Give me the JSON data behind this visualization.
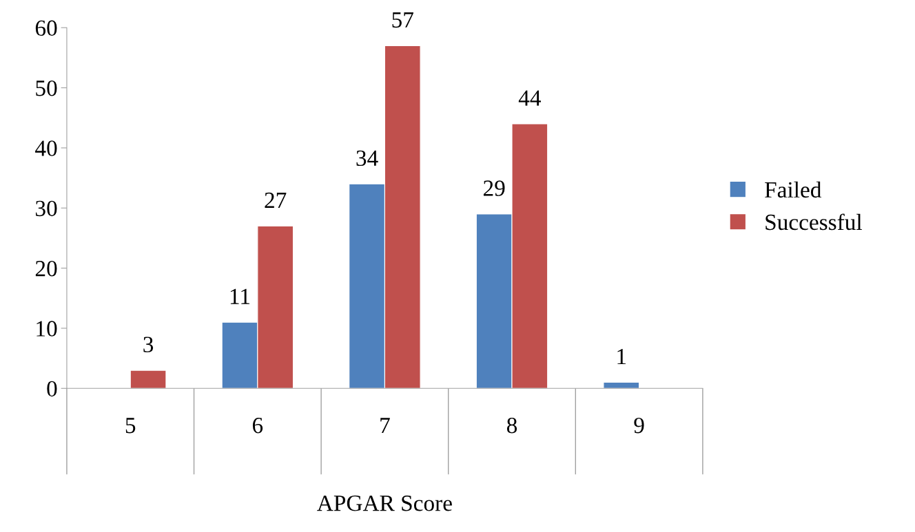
{
  "chart_data": {
    "type": "bar",
    "xlabel": "APGAR Score",
    "categories": [
      "5",
      "6",
      "7",
      "8",
      "9"
    ],
    "series": [
      {
        "name": "Failed",
        "color": "#4f81bd",
        "values": [
          null,
          11,
          34,
          29,
          1
        ]
      },
      {
        "name": "Successful",
        "color": "#c0504d",
        "values": [
          3,
          27,
          57,
          44,
          null
        ]
      }
    ],
    "ylim": [
      0,
      60
    ],
    "yticks": [
      0,
      10,
      20,
      30,
      40,
      50,
      60
    ],
    "grid": false,
    "legend": "right",
    "data_labels": true
  }
}
